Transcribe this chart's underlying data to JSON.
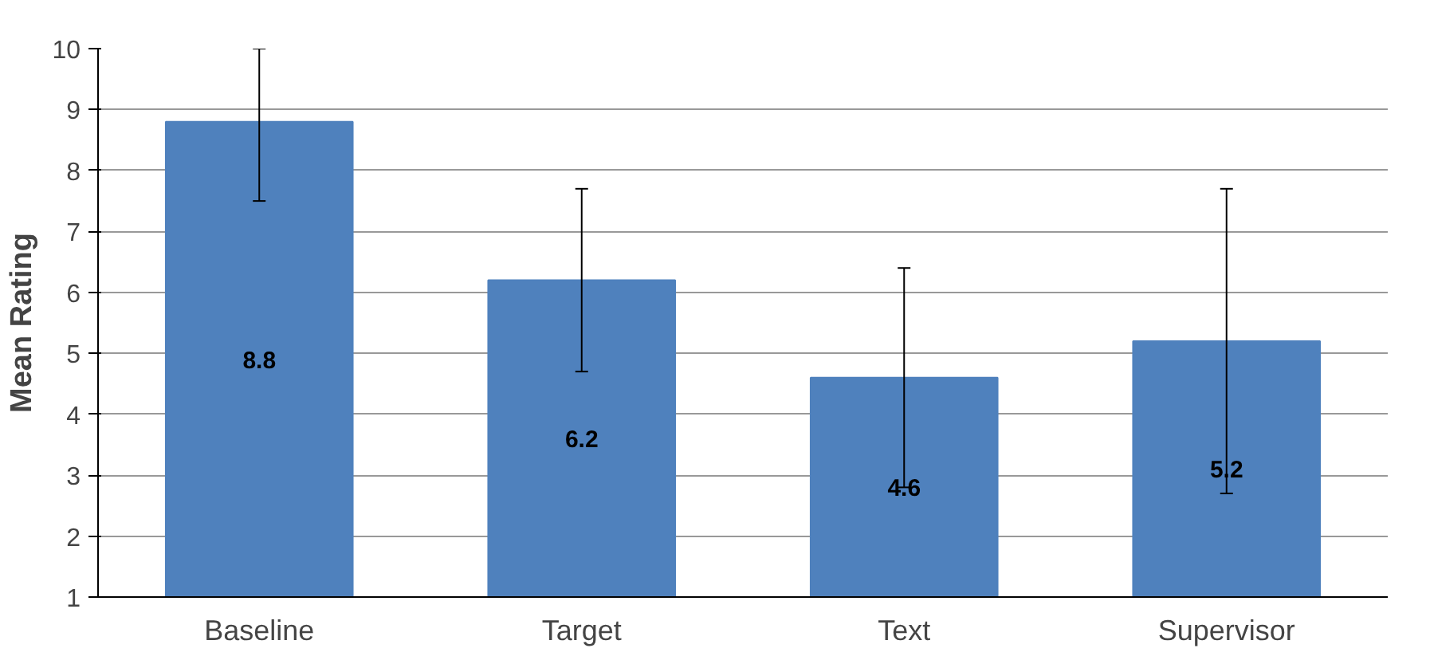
{
  "chart_data": {
    "type": "bar",
    "ylabel": "Mean Rating",
    "categories": [
      "Baseline",
      "Target",
      "Text",
      "Supervisor"
    ],
    "values": [
      8.8,
      6.2,
      4.6,
      5.2
    ],
    "errors": [
      [
        7.5,
        10
      ],
      [
        4.7,
        7.7
      ],
      [
        2.8,
        6.4
      ],
      [
        2.7,
        7.7
      ]
    ],
    "color": "#4f81bd",
    "ylim": [
      1,
      10
    ],
    "yticks": [
      1,
      2,
      3,
      4,
      5,
      6,
      7,
      8,
      9,
      10
    ],
    "grid": "y",
    "data_labels": true
  }
}
